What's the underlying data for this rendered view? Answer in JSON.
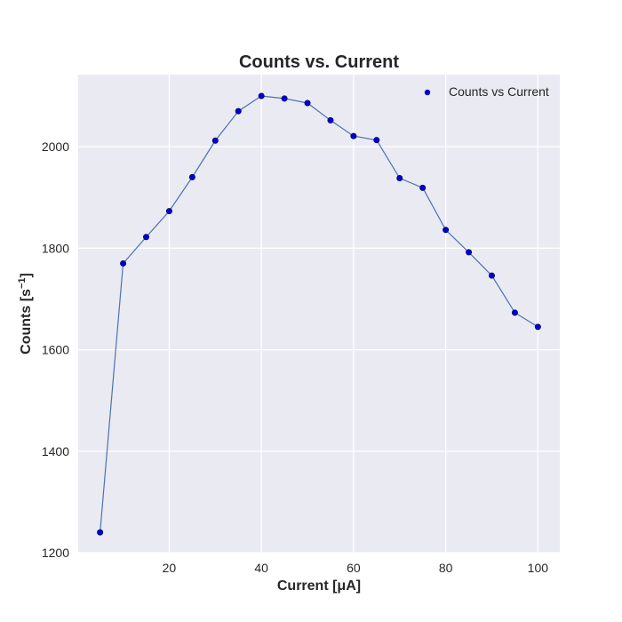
{
  "chart_data": {
    "type": "scatter",
    "title": "Counts vs. Current",
    "xlabel": "Current [μA]",
    "ylabel_main": "Counts [s",
    "ylabel_sup": "−1",
    "ylabel_close": "]",
    "xlim": [
      0.25,
      104.75
    ],
    "ylim": [
      1200,
      2142
    ],
    "xticks": [
      20,
      40,
      60,
      80,
      100
    ],
    "yticks": [
      1200,
      1400,
      1600,
      1800,
      2000
    ],
    "grid": true,
    "legend_position": "top-right",
    "series": [
      {
        "name": "Counts vs Current",
        "marker_color": "#0000cc",
        "line_color": "#4c72b0",
        "x": [
          5,
          10,
          15,
          20,
          25,
          30,
          35,
          40,
          45,
          50,
          55,
          60,
          65,
          70,
          75,
          80,
          85,
          90,
          95,
          100
        ],
        "y": [
          1240,
          1770,
          1822,
          1873,
          1940,
          2012,
          2070,
          2100,
          2095,
          2086,
          2052,
          2021,
          2013,
          1938,
          1919,
          1836,
          1792,
          1746,
          1673,
          1645
        ]
      }
    ]
  },
  "colors": {
    "plot_background": "#eaeaf2",
    "grid": "#ffffff",
    "text": "#262626"
  }
}
